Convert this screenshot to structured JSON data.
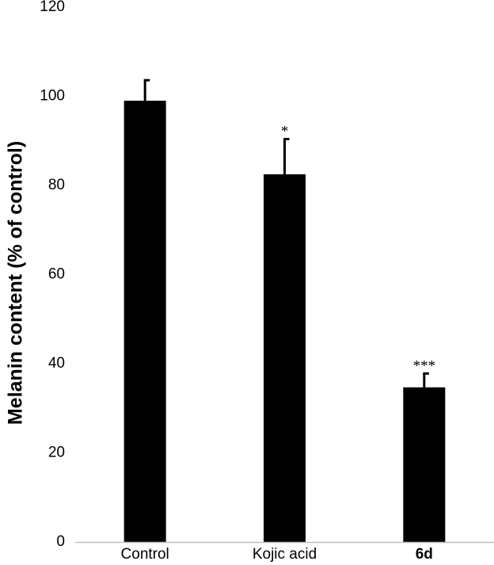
{
  "chart_data": {
    "type": "bar",
    "categories": [
      "Control",
      "Kojic acid",
      "6d"
    ],
    "category_bold": [
      false,
      false,
      true
    ],
    "values": [
      99,
      82.5,
      34.7
    ],
    "errors": [
      4.6,
      7.9,
      3.1
    ],
    "significance": [
      "",
      "*",
      "***"
    ],
    "ylabel": "Melanin content (% of control)",
    "ylim": [
      0,
      120
    ],
    "yticks": [
      0,
      20,
      40,
      60,
      80,
      100,
      120
    ],
    "grid": false,
    "bar_color": "#000000"
  }
}
